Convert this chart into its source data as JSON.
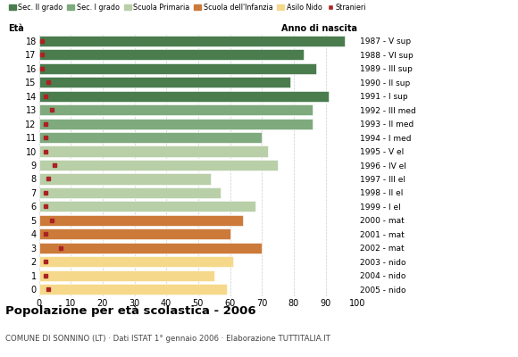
{
  "ages": [
    18,
    17,
    16,
    15,
    14,
    13,
    12,
    11,
    10,
    9,
    8,
    7,
    6,
    5,
    4,
    3,
    2,
    1,
    0
  ],
  "years": [
    "1987 - V sup",
    "1988 - VI sup",
    "1989 - III sup",
    "1990 - II sup",
    "1991 - I sup",
    "1992 - III med",
    "1993 - II med",
    "1994 - I med",
    "1995 - V el",
    "1996 - IV el",
    "1997 - III el",
    "1998 - II el",
    "1999 - I el",
    "2000 - mat",
    "2001 - mat",
    "2002 - mat",
    "2003 - nido",
    "2004 - nido",
    "2005 - nido"
  ],
  "values": [
    96,
    83,
    87,
    79,
    91,
    86,
    86,
    70,
    72,
    75,
    54,
    57,
    68,
    64,
    60,
    70,
    61,
    55,
    59
  ],
  "stranieri": [
    1,
    1,
    1,
    3,
    2,
    4,
    2,
    2,
    2,
    5,
    3,
    2,
    2,
    4,
    2,
    7,
    2,
    2,
    3
  ],
  "bar_colors": [
    "#4a7c4e",
    "#4a7c4e",
    "#4a7c4e",
    "#4a7c4e",
    "#4a7c4e",
    "#7eaa7e",
    "#7eaa7e",
    "#7eaa7e",
    "#b8cfa8",
    "#b8cfa8",
    "#b8cfa8",
    "#b8cfa8",
    "#b8cfa8",
    "#cc7a3a",
    "#cc7a3a",
    "#cc7a3a",
    "#f5d88a",
    "#f5d88a",
    "#f5d88a"
  ],
  "legend_labels": [
    "Sec. II grado",
    "Sec. I grado",
    "Scuola Primaria",
    "Scuola dell'Infanzia",
    "Asilo Nido",
    "Stranieri"
  ],
  "legend_colors": [
    "#4a7c4e",
    "#7eaa7e",
    "#b8cfa8",
    "#cc7a3a",
    "#f5d88a",
    "#aa2222"
  ],
  "xlim": [
    0,
    100
  ],
  "xticks": [
    0,
    10,
    20,
    30,
    40,
    50,
    60,
    70,
    80,
    90,
    100
  ],
  "title": "Popolazione per età scolastica - 2006",
  "subtitle": "COMUNE DI SONNINO (LT) · Dati ISTAT 1° gennaio 2006 · Elaborazione TUTTITALIA.IT",
  "xlabel_eta": "Età",
  "xlabel_anno": "Anno di nascita",
  "background_color": "#ffffff",
  "grid_color": "#cccccc",
  "bar_height": 0.78
}
